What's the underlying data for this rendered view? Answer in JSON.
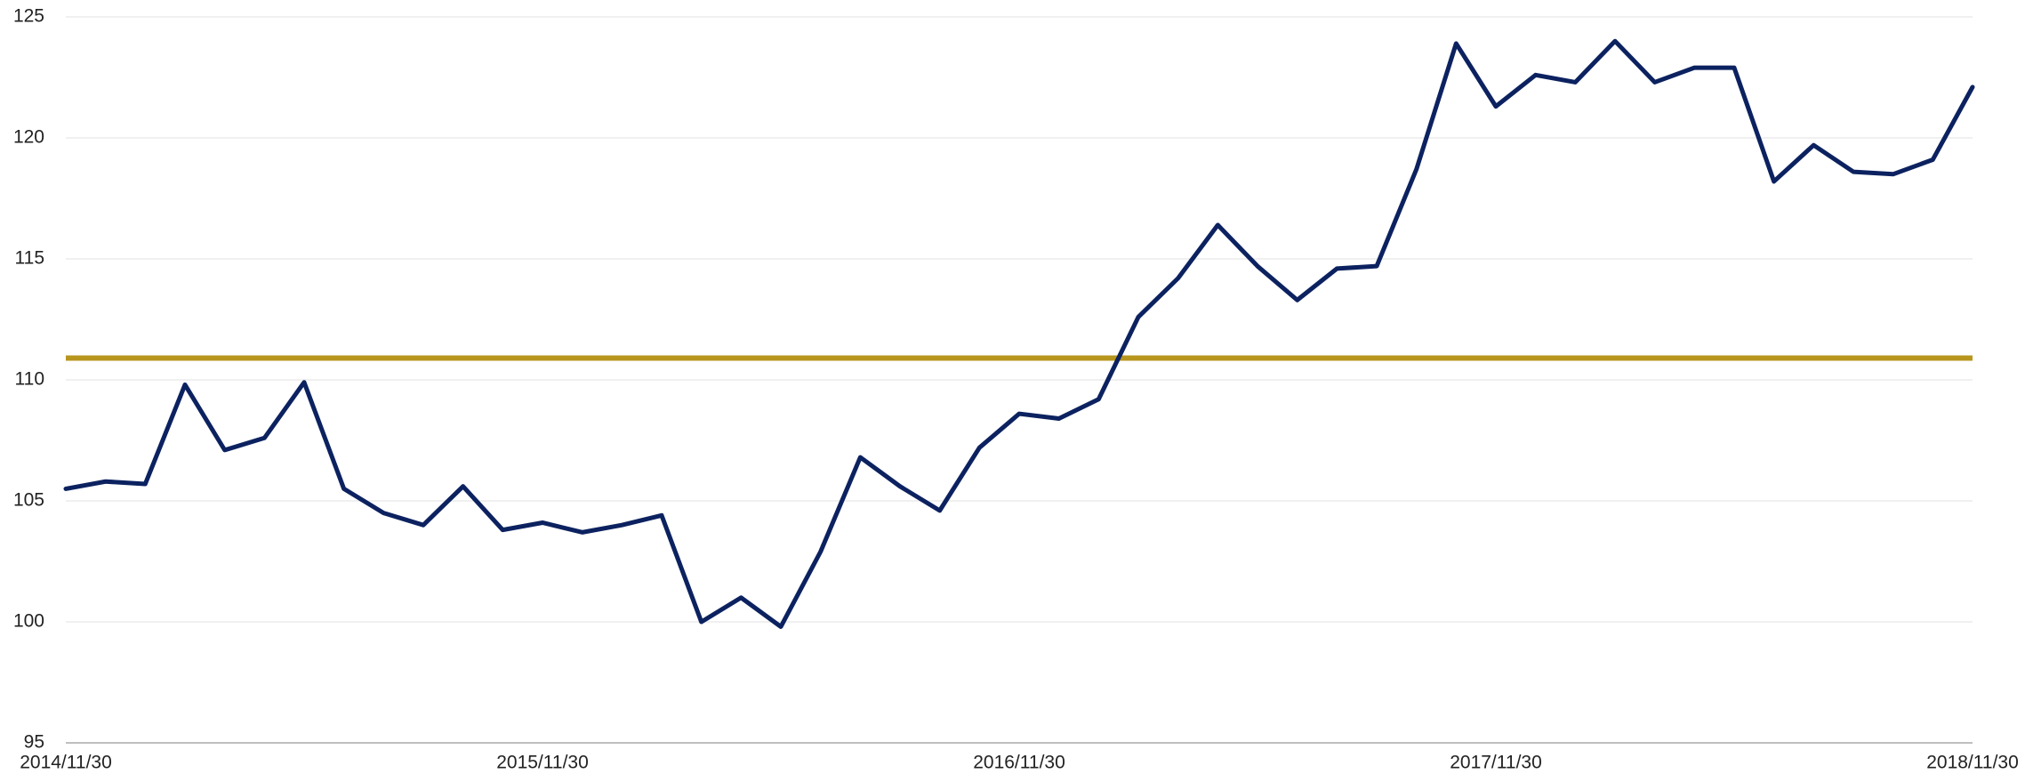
{
  "chart_data": {
    "type": "line",
    "categories": [
      "2014/11/30",
      null,
      null,
      null,
      null,
      null,
      null,
      null,
      null,
      null,
      null,
      null,
      "2015/11/30",
      null,
      null,
      null,
      null,
      null,
      null,
      null,
      null,
      null,
      null,
      null,
      "2016/11/30",
      null,
      null,
      null,
      null,
      null,
      null,
      null,
      null,
      null,
      null,
      null,
      "2017/11/30",
      null,
      null,
      null,
      null,
      null,
      null,
      null,
      null,
      null,
      null,
      null,
      "2018/11/30"
    ],
    "series": [
      {
        "color": "#0c2260",
        "values": [
          105.5,
          105.8,
          105.7,
          109.8,
          107.1,
          107.6,
          109.9,
          105.5,
          104.5,
          104.0,
          105.6,
          103.8,
          104.1,
          103.7,
          104.0,
          104.4,
          100.0,
          101.0,
          99.8,
          102.9,
          106.8,
          105.6,
          104.6,
          107.2,
          108.6,
          108.4,
          109.2,
          112.6,
          114.2,
          116.4,
          114.7,
          113.3,
          114.6,
          114.7,
          118.7,
          123.9,
          121.3,
          122.6,
          122.3,
          124.0,
          122.3,
          122.9,
          122.9,
          118.2,
          119.7,
          118.6,
          118.5,
          119.1,
          122.1
        ]
      }
    ],
    "reference_line": {
      "value": 110.9,
      "color": "#b8961e"
    },
    "ylim": [
      95,
      125
    ],
    "yticks": [
      95,
      100,
      105,
      110,
      115,
      120,
      125
    ],
    "grid": true
  }
}
